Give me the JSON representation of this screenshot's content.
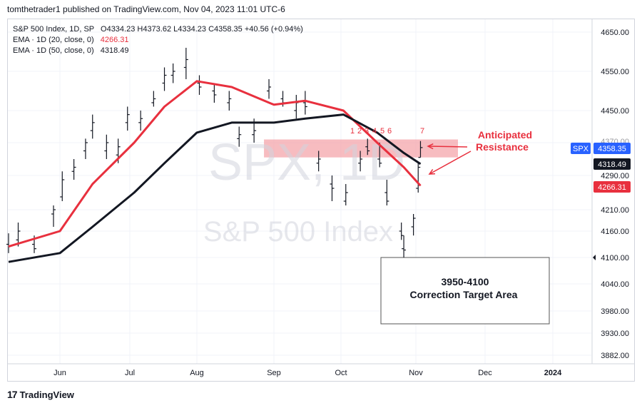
{
  "header": {
    "published_line": "tomthetrader1 published on TradingView.com, Nov 04, 2023 11:01 UTC-6"
  },
  "legend": {
    "symbol_line": "S&P 500 Index, 1D, SP",
    "ohlc": "O4334.23  H4373.62  L4334.23  C4358.35  +40.56 (+0.94%)",
    "ema20_label": "EMA · 1D (20, close, 0)",
    "ema20_value": "4266.31",
    "ema50_label": "EMA · 1D (50, close, 0)",
    "ema50_value": "4318.49"
  },
  "watermark": {
    "symbol": "SPX, 1D",
    "name": "S&P 500 Index"
  },
  "annotations": {
    "wave_labels": [
      "1",
      "2",
      "3",
      "4",
      "5",
      "6",
      "7"
    ],
    "resistance_label_1": "Anticipated",
    "resistance_label_2": "Resistance",
    "target_box_line1": "3950-4100",
    "target_box_line2": "Correction Target Area"
  },
  "price_tags": {
    "symbol": "SPX",
    "last": "4358.35",
    "ema50": "4318.49",
    "ema20": "4266.31",
    "grid_4370_partial": "4370.00"
  },
  "footer": {
    "brand": "TradingView",
    "logo": "17"
  },
  "colors": {
    "ema20": "#e8303e",
    "ema50": "#131722",
    "resistance_zone": "#f4a5ab",
    "last_tag": "#2962ff",
    "annotation": "#e8303e"
  },
  "chart_data": {
    "type": "ohlc",
    "title": "S&P 500 Index, 1D, SP",
    "y_ticks": [
      4650,
      4550,
      4450,
      4370,
      4290,
      4210,
      4160,
      4100,
      4040,
      3980,
      3930,
      3882
    ],
    "y_tick_labels": [
      "4650.00",
      "4550.00",
      "4450.00",
      "4370.00",
      "4290.00",
      "4210.00",
      "4160.00",
      "4100.00",
      "4040.00",
      "3980.00",
      "3930.00",
      "3882.00"
    ],
    "x_tick_labels": [
      "Jun",
      "Jul",
      "Aug",
      "Sep",
      "Oct",
      "Nov",
      "Dec",
      "2024"
    ],
    "x_tick_dates": [
      "2023-06-01",
      "2023-07-01",
      "2023-08-01",
      "2023-09-01",
      "2023-10-01",
      "2023-11-01",
      "2023-12-01",
      "2024-01-01"
    ],
    "resistance_zone": [
      4334,
      4378
    ],
    "target_zone": [
      3950,
      4100
    ],
    "series": [
      {
        "name": "EMA · 1D (20, close, 0)",
        "points": [
          [
            "2023-05-16",
            4125
          ],
          [
            "2023-06-01",
            4160
          ],
          [
            "2023-06-15",
            4270
          ],
          [
            "2023-07-03",
            4370
          ],
          [
            "2023-07-17",
            4460
          ],
          [
            "2023-08-01",
            4525
          ],
          [
            "2023-08-15",
            4510
          ],
          [
            "2023-09-01",
            4465
          ],
          [
            "2023-09-15",
            4475
          ],
          [
            "2023-10-02",
            4450
          ],
          [
            "2023-10-16",
            4370
          ],
          [
            "2023-10-27",
            4310
          ],
          [
            "2023-11-03",
            4266
          ]
        ]
      },
      {
        "name": "EMA · 1D (50, close, 0)",
        "points": [
          [
            "2023-05-16",
            4090
          ],
          [
            "2023-06-01",
            4110
          ],
          [
            "2023-06-15",
            4170
          ],
          [
            "2023-07-03",
            4250
          ],
          [
            "2023-07-17",
            4320
          ],
          [
            "2023-08-01",
            4395
          ],
          [
            "2023-08-15",
            4420
          ],
          [
            "2023-09-01",
            4420
          ],
          [
            "2023-09-15",
            4430
          ],
          [
            "2023-10-02",
            4440
          ],
          [
            "2023-10-16",
            4395
          ],
          [
            "2023-10-27",
            4345
          ],
          [
            "2023-11-03",
            4318
          ]
        ]
      }
    ],
    "ohlc_bars": [
      [
        "2023-05-16",
        4130,
        4155,
        4110,
        4125
      ],
      [
        "2023-05-19",
        4140,
        4180,
        4125,
        4160
      ],
      [
        "2023-05-24",
        4130,
        4150,
        4110,
        4120
      ],
      [
        "2023-05-30",
        4200,
        4220,
        4170,
        4210
      ],
      [
        "2023-06-02",
        4240,
        4300,
        4230,
        4280
      ],
      [
        "2023-06-07",
        4300,
        4330,
        4280,
        4310
      ],
      [
        "2023-06-12",
        4350,
        4380,
        4330,
        4370
      ],
      [
        "2023-06-15",
        4400,
        4440,
        4380,
        4420
      ],
      [
        "2023-06-21",
        4350,
        4390,
        4330,
        4370
      ],
      [
        "2023-06-26",
        4340,
        4380,
        4320,
        4360
      ],
      [
        "2023-06-30",
        4420,
        4460,
        4400,
        4440
      ],
      [
        "2023-07-06",
        4420,
        4450,
        4400,
        4430
      ],
      [
        "2023-07-12",
        4470,
        4500,
        4460,
        4480
      ],
      [
        "2023-07-17",
        4520,
        4560,
        4500,
        4540
      ],
      [
        "2023-07-21",
        4540,
        4570,
        4520,
        4550
      ],
      [
        "2023-07-27",
        4560,
        4610,
        4530,
        4580
      ],
      [
        "2023-08-02",
        4520,
        4540,
        4490,
        4510
      ],
      [
        "2023-08-08",
        4500,
        4520,
        4470,
        4490
      ],
      [
        "2023-08-14",
        4470,
        4500,
        4450,
        4480
      ],
      [
        "2023-08-18",
        4380,
        4410,
        4360,
        4390
      ],
      [
        "2023-08-24",
        4390,
        4430,
        4370,
        4400
      ],
      [
        "2023-08-30",
        4500,
        4530,
        4480,
        4510
      ],
      [
        "2023-09-05",
        4480,
        4500,
        4460,
        4470
      ],
      [
        "2023-09-11",
        4450,
        4490,
        4430,
        4470
      ],
      [
        "2023-09-15",
        4470,
        4500,
        4440,
        4460
      ],
      [
        "2023-09-21",
        4320,
        4350,
        4300,
        4330
      ],
      [
        "2023-09-27",
        4270,
        4290,
        4230,
        4260
      ],
      [
        "2023-10-03",
        4230,
        4270,
        4220,
        4250
      ],
      [
        "2023-10-09",
        4320,
        4350,
        4300,
        4330
      ],
      [
        "2023-10-12",
        4360,
        4380,
        4340,
        4350
      ],
      [
        "2023-10-17",
        4330,
        4370,
        4310,
        4320
      ],
      [
        "2023-10-20",
        4250,
        4280,
        4220,
        4230
      ],
      [
        "2023-10-26",
        4160,
        4180,
        4140,
        4150
      ],
      [
        "2023-10-27",
        4120,
        4150,
        4100,
        4117
      ],
      [
        "2023-10-31",
        4170,
        4200,
        4150,
        4190
      ],
      [
        "2023-11-02",
        4260,
        4320,
        4250,
        4310
      ],
      [
        "2023-11-03",
        4334,
        4374,
        4334,
        4358
      ]
    ]
  }
}
